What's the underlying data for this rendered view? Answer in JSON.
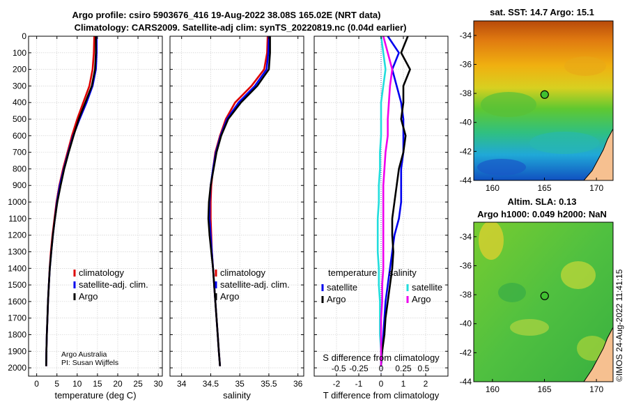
{
  "header": {
    "line1": "Argo profile: csiro 5903676_416 19-Aug-2022 38.08S 165.02E (NRT data)",
    "line2": "Climatology: CARS2009. Satellite-adj clim: synTS_20220819.nc (0.04d earlier)"
  },
  "credit": {
    "line1": "Argo Australia",
    "line2": "PI: Susan Wijffels"
  },
  "watermark": "©IMOS 24-Aug-2022 11:41:15",
  "colors": {
    "climatology": "#dd0000",
    "satellite": "#0000ee",
    "argo": "#000000",
    "sat_salinity": "#22dddd",
    "argo_salinity": "#ee00ee"
  },
  "chart_data": [
    {
      "type": "line",
      "xlabel": "temperature (deg C)",
      "ylabel": "",
      "xlim": [
        -2,
        31
      ],
      "ylim": [
        0,
        2050
      ],
      "xticks": [
        0,
        5,
        10,
        15,
        20,
        25,
        30
      ],
      "yticks": [
        0,
        100,
        200,
        300,
        400,
        500,
        600,
        700,
        800,
        900,
        1000,
        1100,
        1200,
        1300,
        1400,
        1500,
        1600,
        1700,
        1800,
        1900,
        2000
      ],
      "grid": true,
      "legend": {
        "placement": "lower-center",
        "entries": [
          "climatology",
          "satellite-adj. clim.",
          "Argo"
        ]
      },
      "series": [
        {
          "name": "climatology",
          "color": "#dd0000",
          "x": [
            14.2,
            14.1,
            13.8,
            13.0,
            11.5,
            10.0,
            8.7,
            7.6,
            6.5,
            5.6,
            4.9,
            4.4,
            3.9,
            3.5,
            3.2,
            3.0,
            2.8,
            2.65,
            2.5,
            2.4,
            2.35
          ],
          "y": [
            0,
            100,
            200,
            300,
            400,
            500,
            600,
            700,
            800,
            900,
            1000,
            1100,
            1200,
            1300,
            1400,
            1500,
            1600,
            1700,
            1800,
            1900,
            1990
          ]
        },
        {
          "name": "satellite-adj. clim.",
          "color": "#0000ee",
          "x": [
            14.8,
            14.8,
            14.6,
            13.8,
            12.3,
            10.6,
            9.0,
            7.8,
            6.7,
            5.7,
            5.0,
            4.5,
            4.0,
            3.6,
            3.25,
            3.0,
            2.8,
            2.65,
            2.5,
            2.4,
            2.35
          ],
          "y": [
            0,
            100,
            200,
            300,
            400,
            500,
            600,
            700,
            800,
            900,
            1000,
            1100,
            1200,
            1300,
            1400,
            1500,
            1600,
            1700,
            1800,
            1900,
            1990
          ]
        },
        {
          "name": "Argo",
          "color": "#000000",
          "x": [
            14.6,
            14.6,
            14.4,
            13.6,
            12.0,
            10.4,
            9.1,
            7.9,
            6.8,
            5.9,
            5.1,
            4.5,
            4.0,
            3.6,
            3.25,
            3.0,
            2.8,
            2.65,
            2.5,
            2.4,
            2.35
          ],
          "y": [
            0,
            100,
            200,
            300,
            400,
            500,
            600,
            700,
            800,
            900,
            1000,
            1100,
            1200,
            1300,
            1400,
            1500,
            1600,
            1700,
            1800,
            1900,
            1990
          ]
        }
      ]
    },
    {
      "type": "line",
      "xlabel": "salinity",
      "ylabel": "",
      "xlim": [
        33.8,
        36.1
      ],
      "ylim": [
        0,
        2050
      ],
      "xticks": [
        34,
        34.5,
        35,
        35.5,
        36
      ],
      "grid": true,
      "legend": {
        "placement": "lower-center",
        "entries": [
          "climatology",
          "satellite-adj. clim.",
          "Argo"
        ]
      },
      "series": [
        {
          "name": "climatology",
          "color": "#dd0000",
          "x": [
            35.48,
            35.47,
            35.42,
            35.2,
            34.92,
            34.76,
            34.66,
            34.58,
            34.54,
            34.51,
            34.5,
            34.5,
            34.51,
            34.52,
            34.54,
            34.56,
            34.58,
            34.6,
            34.62,
            34.64,
            34.66
          ],
          "y": [
            0,
            100,
            200,
            300,
            400,
            500,
            600,
            700,
            800,
            900,
            1000,
            1100,
            1200,
            1300,
            1400,
            1500,
            1600,
            1700,
            1800,
            1900,
            1990
          ]
        },
        {
          "name": "satellite-adj. clim.",
          "color": "#0000ee",
          "x": [
            35.5,
            35.49,
            35.46,
            35.26,
            34.98,
            34.78,
            34.67,
            34.59,
            34.54,
            34.5,
            34.48,
            34.48,
            34.5,
            34.52,
            34.54,
            34.56,
            34.58,
            34.6,
            34.62,
            34.64,
            34.66
          ],
          "y": [
            0,
            100,
            200,
            300,
            400,
            500,
            600,
            700,
            800,
            900,
            1000,
            1100,
            1200,
            1300,
            1400,
            1500,
            1600,
            1700,
            1800,
            1900,
            1990
          ]
        },
        {
          "name": "Argo",
          "color": "#000000",
          "x": [
            35.52,
            35.52,
            35.5,
            35.3,
            35.02,
            34.8,
            34.68,
            34.6,
            34.55,
            34.5,
            34.47,
            34.46,
            34.48,
            34.51,
            34.54,
            34.56,
            34.58,
            34.6,
            34.62,
            34.64,
            34.66
          ],
          "y": [
            0,
            100,
            200,
            300,
            400,
            500,
            600,
            700,
            800,
            900,
            1000,
            1100,
            1200,
            1300,
            1400,
            1500,
            1600,
            1700,
            1800,
            1900,
            1990
          ]
        }
      ]
    },
    {
      "type": "line",
      "xlabel": "T difference from climatology",
      "ylabel": "",
      "xlabel_top": "S difference from climatology",
      "xlim": [
        -3,
        3
      ],
      "ylim": [
        0,
        2050
      ],
      "xticks": [
        -2,
        -1,
        0,
        1,
        2
      ],
      "sticks": [
        {
          "x": -1.9,
          "label": "-0.5"
        },
        {
          "x": -1.0,
          "label": "-0.25"
        },
        {
          "x": 0,
          "label": "0"
        },
        {
          "x": 1.0,
          "label": "0.25"
        },
        {
          "x": 1.9,
          "label": "0.5"
        }
      ],
      "grid": true,
      "legend": {
        "placement": "lower-center",
        "temperature_title": "temperature",
        "temperature_entries": [
          "satellite",
          "Argo"
        ],
        "salinity_title": "salinity",
        "salinity_entries": [
          "satellite",
          "Argo"
        ]
      },
      "series": [
        {
          "name": "satellite",
          "color": "#0000ee",
          "x": [
            0.3,
            0.8,
            0.5,
            0.7,
            0.9,
            1.0,
            1.0,
            1.0,
            0.9,
            0.9,
            0.9,
            0.8,
            0.6,
            0.5,
            0.4,
            0.3,
            0.2,
            0.15,
            0.1,
            0.05,
            0.0
          ],
          "y": [
            0,
            100,
            200,
            300,
            400,
            500,
            600,
            700,
            800,
            900,
            1000,
            1100,
            1200,
            1300,
            1400,
            1500,
            1600,
            1700,
            1800,
            1900,
            1990
          ]
        },
        {
          "name": "Argo",
          "color": "#000000",
          "x": [
            1.2,
            0.9,
            1.3,
            1.0,
            1.0,
            0.9,
            1.1,
            1.0,
            0.8,
            0.7,
            0.6,
            0.5,
            0.5,
            0.55,
            0.5,
            0.4,
            0.3,
            0.2,
            0.15,
            0.05,
            0.0
          ],
          "y": [
            0,
            100,
            200,
            300,
            400,
            500,
            600,
            700,
            800,
            900,
            1000,
            1100,
            1200,
            1300,
            1400,
            1500,
            1600,
            1700,
            1800,
            1900,
            1990
          ]
        },
        {
          "name": "satellite",
          "color": "#22dddd",
          "x": [
            0.0,
            0.1,
            0.2,
            0.1,
            0.0,
            0.0,
            0.0,
            -0.05,
            -0.05,
            -0.1,
            -0.1,
            -0.15,
            -0.15,
            -0.15,
            -0.1,
            -0.1,
            -0.05,
            -0.05,
            -0.05,
            0.0,
            0.0
          ],
          "y": [
            0,
            100,
            200,
            300,
            400,
            500,
            600,
            700,
            800,
            900,
            1000,
            1100,
            1200,
            1300,
            1400,
            1500,
            1600,
            1700,
            1800,
            1900,
            1990
          ]
        },
        {
          "name": "Argo",
          "color": "#ee00ee",
          "x": [
            0.1,
            0.3,
            0.5,
            0.4,
            0.35,
            0.3,
            0.3,
            0.2,
            0.15,
            0.1,
            0.1,
            0.1,
            0.1,
            0.1,
            0.1,
            0.05,
            0.05,
            0.0,
            0.0,
            0.0,
            0.0
          ],
          "y": [
            0,
            100,
            200,
            300,
            400,
            500,
            600,
            700,
            800,
            900,
            1000,
            1100,
            1200,
            1300,
            1400,
            1500,
            1600,
            1700,
            1800,
            1900,
            1990
          ]
        }
      ]
    },
    {
      "type": "heatmap",
      "title": "sat. SST: 14.7 Argo: 15.1",
      "xlim": [
        158.2,
        171.6
      ],
      "ylim": [
        -44,
        -33
      ],
      "xticks": [
        160,
        165,
        170
      ],
      "yticks": [
        -34,
        -36,
        -38,
        -40,
        -42,
        -44
      ],
      "marker": {
        "lon": 165.02,
        "lat": -38.08
      }
    },
    {
      "type": "heatmap",
      "title": "Altim. SLA: 0.13",
      "subtitle": "Argo h1000: 0.049 h2000: NaN",
      "xlim": [
        158.2,
        171.6
      ],
      "ylim": [
        -44,
        -33
      ],
      "xticks": [
        160,
        165,
        170
      ],
      "yticks": [
        -34,
        -36,
        -38,
        -40,
        -42,
        -44
      ],
      "marker": {
        "lon": 165.02,
        "lat": -38.08
      }
    }
  ]
}
